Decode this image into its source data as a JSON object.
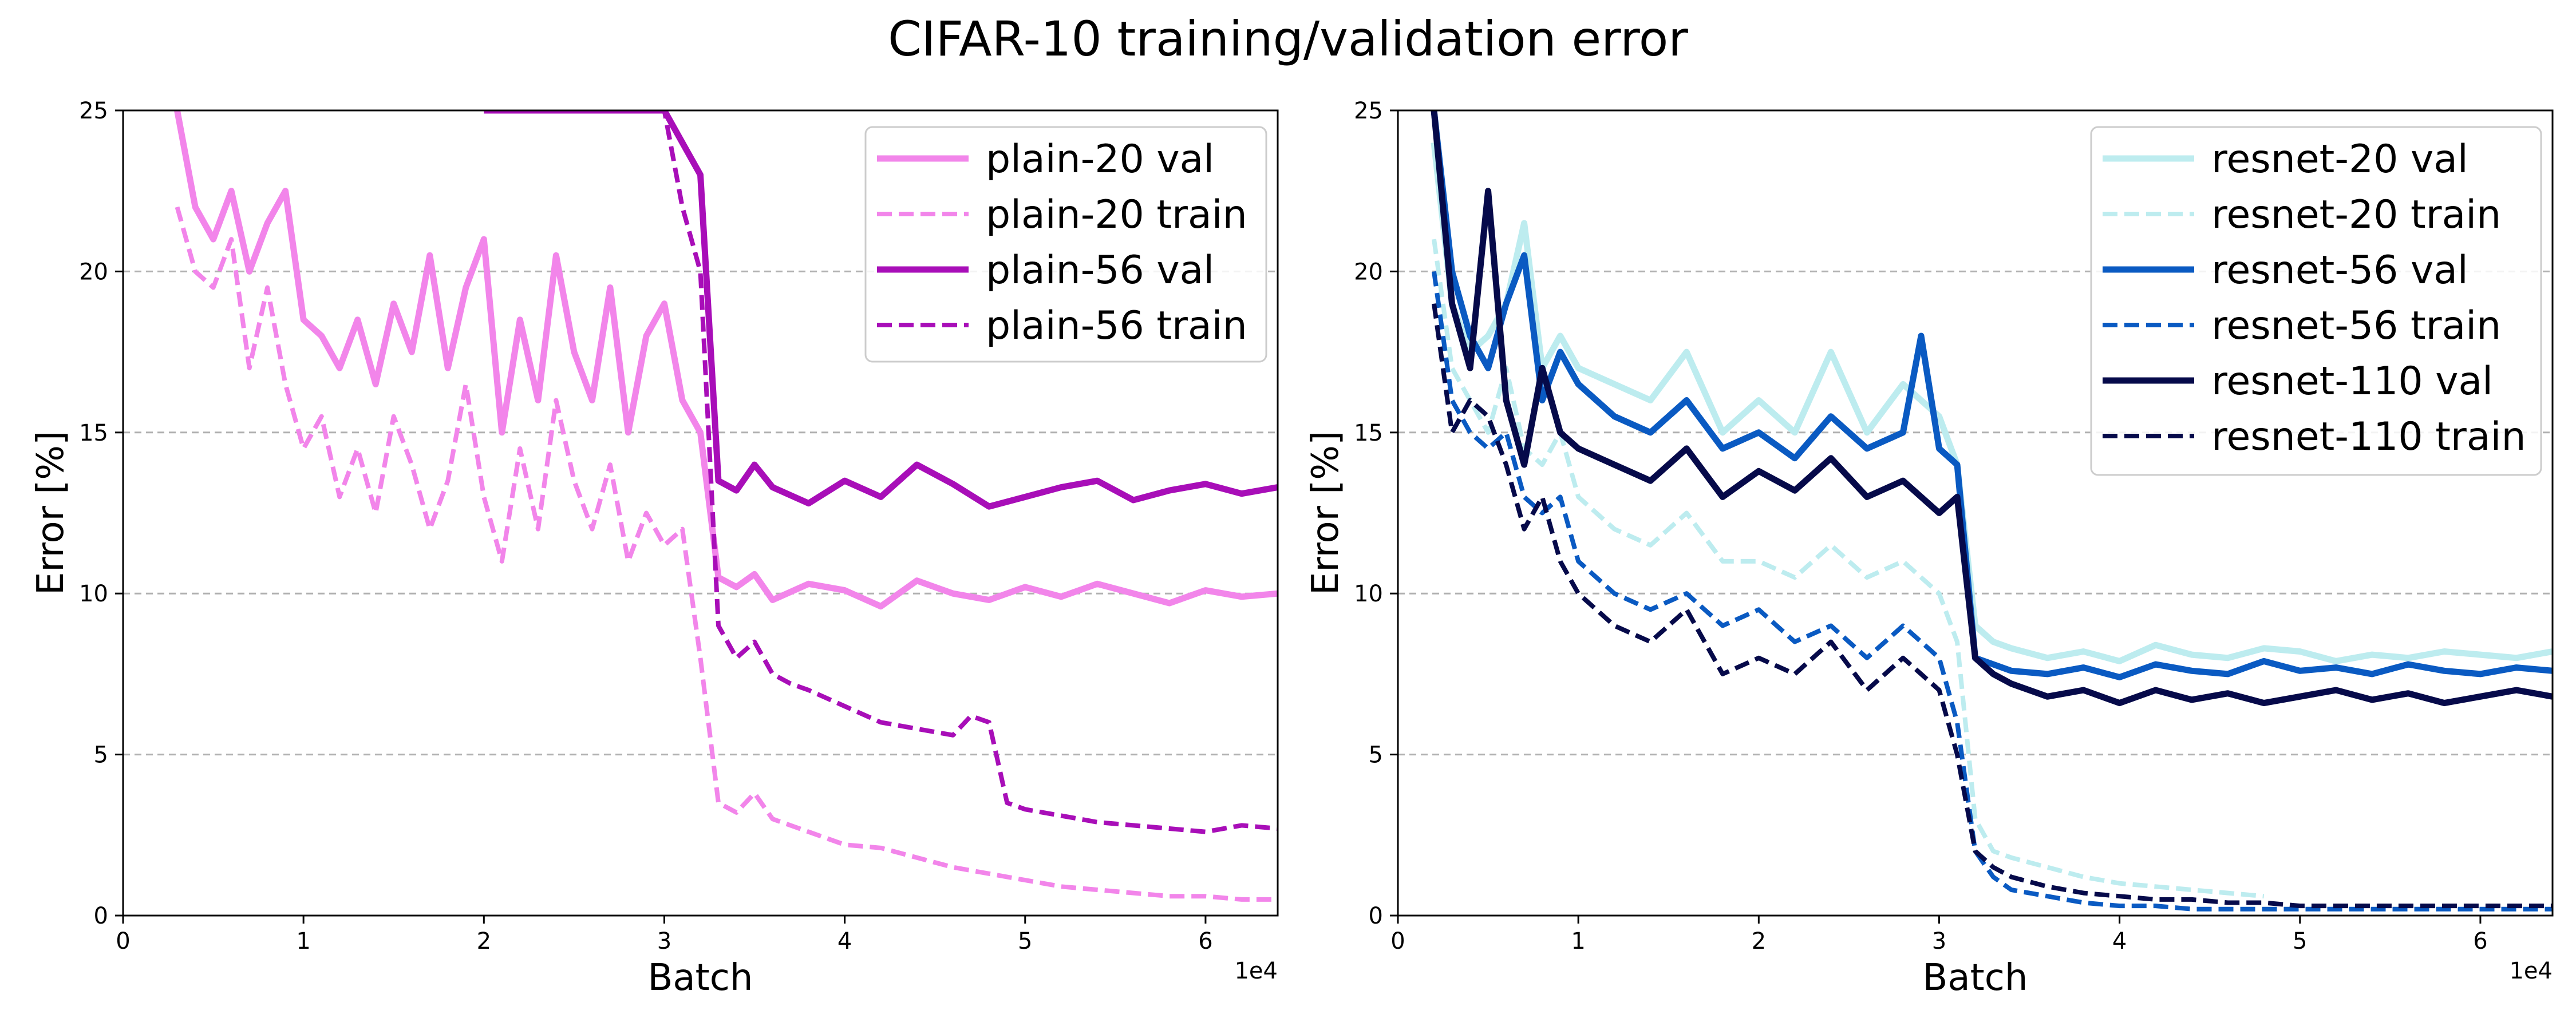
{
  "figure": {
    "title": "CIFAR-10 training/validation error"
  },
  "chart_data": [
    {
      "type": "line",
      "xlabel": "Batch",
      "ylabel": "Error [%]",
      "x_offset_label": "1e4",
      "xlim": [
        0,
        64000
      ],
      "ylim": [
        0,
        25
      ],
      "x_ticks": [
        0,
        10000,
        20000,
        30000,
        40000,
        50000,
        60000
      ],
      "x_tick_labels": [
        "0",
        "1",
        "2",
        "3",
        "4",
        "5",
        "6"
      ],
      "y_ticks": [
        0,
        5,
        10,
        15,
        20,
        25
      ],
      "y_tick_labels": [
        "0",
        "5",
        "10",
        "15",
        "20",
        "25"
      ],
      "grid": "horizontal dashed",
      "legend_position": "upper-right",
      "series": [
        {
          "name": "plain-20 val",
          "color": "#f285ea",
          "dash": "solid",
          "x": [
            3000,
            4000,
            5000,
            6000,
            7000,
            8000,
            9000,
            10000,
            11000,
            12000,
            13000,
            14000,
            15000,
            16000,
            17000,
            18000,
            19000,
            20000,
            21000,
            22000,
            23000,
            24000,
            25000,
            26000,
            27000,
            28000,
            29000,
            30000,
            31000,
            32000,
            33000,
            34000,
            35000,
            36000,
            38000,
            40000,
            42000,
            44000,
            46000,
            48000,
            50000,
            52000,
            54000,
            56000,
            58000,
            60000,
            62000,
            64000
          ],
          "y": [
            25,
            22,
            21,
            22.5,
            20,
            21.5,
            22.5,
            18.5,
            18,
            17,
            18.5,
            16.5,
            19,
            17.5,
            20.5,
            17,
            19.5,
            21,
            15,
            18.5,
            16,
            20.5,
            17.5,
            16,
            19.5,
            15,
            18,
            19,
            16,
            15,
            10.5,
            10.2,
            10.6,
            9.8,
            10.3,
            10.1,
            9.6,
            10.4,
            10,
            9.8,
            10.2,
            9.9,
            10.3,
            10,
            9.7,
            10.1,
            9.9,
            10
          ]
        },
        {
          "name": "plain-20 train",
          "color": "#f285ea",
          "dash": "dashed",
          "x": [
            3000,
            4000,
            5000,
            6000,
            7000,
            8000,
            9000,
            10000,
            11000,
            12000,
            13000,
            14000,
            15000,
            16000,
            17000,
            18000,
            19000,
            20000,
            21000,
            22000,
            23000,
            24000,
            25000,
            26000,
            27000,
            28000,
            29000,
            30000,
            31000,
            32000,
            33000,
            34000,
            35000,
            36000,
            38000,
            40000,
            42000,
            44000,
            46000,
            48000,
            50000,
            52000,
            54000,
            56000,
            58000,
            60000,
            62000,
            64000
          ],
          "y": [
            22,
            20,
            19.5,
            21,
            17,
            19.5,
            16.5,
            14.5,
            15.5,
            13,
            14.5,
            12.5,
            15.5,
            14,
            12,
            13.5,
            16.5,
            13,
            11,
            14.5,
            12,
            16,
            13.5,
            12,
            14,
            11,
            12.5,
            11.5,
            12,
            8,
            3.5,
            3.2,
            3.8,
            3,
            2.6,
            2.2,
            2.1,
            1.8,
            1.5,
            1.3,
            1.1,
            0.9,
            0.8,
            0.7,
            0.6,
            0.6,
            0.5,
            0.5
          ]
        },
        {
          "name": "plain-56 val",
          "color": "#a80eb8",
          "dash": "solid",
          "x": [
            20000,
            22000,
            24000,
            26000,
            28000,
            30000,
            31000,
            32000,
            33000,
            34000,
            35000,
            36000,
            38000,
            40000,
            42000,
            44000,
            46000,
            48000,
            50000,
            52000,
            54000,
            56000,
            58000,
            60000,
            62000,
            64000
          ],
          "y": [
            25,
            25,
            25,
            25,
            25,
            25,
            24,
            23,
            13.5,
            13.2,
            14,
            13.3,
            12.8,
            13.5,
            13,
            14,
            13.4,
            12.7,
            13,
            13.3,
            13.5,
            12.9,
            13.2,
            13.4,
            13.1,
            13.3
          ]
        },
        {
          "name": "plain-56 train",
          "color": "#a80eb8",
          "dash": "dashed",
          "x": [
            26000,
            28000,
            30000,
            31000,
            32000,
            33000,
            34000,
            35000,
            36000,
            37000,
            38000,
            40000,
            42000,
            44000,
            46000,
            47000,
            48000,
            49000,
            50000,
            52000,
            54000,
            56000,
            58000,
            60000,
            62000,
            64000
          ],
          "y": [
            25,
            25,
            25,
            22,
            20,
            9,
            8,
            8.5,
            7.5,
            7.2,
            7,
            6.5,
            6,
            5.8,
            5.6,
            6.2,
            6,
            3.5,
            3.3,
            3.1,
            2.9,
            2.8,
            2.7,
            2.6,
            2.8,
            2.7
          ]
        }
      ]
    },
    {
      "type": "line",
      "xlabel": "Batch",
      "ylabel": "Error [%]",
      "x_offset_label": "1e4",
      "xlim": [
        0,
        64000
      ],
      "ylim": [
        0,
        25
      ],
      "x_ticks": [
        0,
        10000,
        20000,
        30000,
        40000,
        50000,
        60000
      ],
      "x_tick_labels": [
        "0",
        "1",
        "2",
        "3",
        "4",
        "5",
        "6"
      ],
      "y_ticks": [
        0,
        5,
        10,
        15,
        20,
        25
      ],
      "y_tick_labels": [
        "0",
        "5",
        "10",
        "15",
        "20",
        "25"
      ],
      "grid": "horizontal dashed",
      "legend_position": "upper-right",
      "series": [
        {
          "name": "resnet-20 val",
          "color": "#bdecef",
          "dash": "solid",
          "x": [
            2000,
            3000,
            4000,
            5000,
            6000,
            7000,
            8000,
            9000,
            10000,
            12000,
            14000,
            16000,
            18000,
            20000,
            22000,
            24000,
            26000,
            28000,
            30000,
            31000,
            32000,
            33000,
            34000,
            36000,
            38000,
            40000,
            42000,
            44000,
            46000,
            48000,
            50000,
            52000,
            54000,
            56000,
            58000,
            60000,
            62000,
            64000
          ],
          "y": [
            24,
            19,
            17.5,
            18,
            19,
            21.5,
            17,
            18,
            17,
            16.5,
            16,
            17.5,
            15,
            16,
            15,
            17.5,
            15,
            16.5,
            15.5,
            14,
            9,
            8.5,
            8.3,
            8,
            8.2,
            7.9,
            8.4,
            8.1,
            8,
            8.3,
            8.2,
            7.9,
            8.1,
            8,
            8.2,
            8.1,
            8,
            8.2
          ]
        },
        {
          "name": "resnet-20 train",
          "color": "#bdecef",
          "dash": "dashed",
          "x": [
            2000,
            3000,
            4000,
            5000,
            6000,
            7000,
            8000,
            9000,
            10000,
            12000,
            14000,
            16000,
            18000,
            20000,
            22000,
            24000,
            26000,
            28000,
            30000,
            31000,
            32000,
            33000,
            34000,
            36000,
            38000,
            40000,
            42000,
            44000,
            46000,
            48000
          ],
          "y": [
            21,
            17,
            16,
            15,
            17,
            14.5,
            14,
            15,
            13,
            12,
            11.5,
            12.5,
            11,
            11,
            10.5,
            11.5,
            10.5,
            11,
            10,
            8.5,
            3,
            2,
            1.8,
            1.5,
            1.2,
            1,
            0.9,
            0.8,
            0.7,
            0.6
          ]
        },
        {
          "name": "resnet-56 val",
          "color": "#0a5ac2",
          "dash": "solid",
          "x": [
            2000,
            3000,
            4000,
            5000,
            6000,
            7000,
            8000,
            9000,
            10000,
            12000,
            14000,
            16000,
            18000,
            20000,
            22000,
            24000,
            26000,
            28000,
            29000,
            30000,
            31000,
            32000,
            33000,
            34000,
            36000,
            38000,
            40000,
            42000,
            44000,
            46000,
            48000,
            50000,
            52000,
            54000,
            56000,
            58000,
            60000,
            62000,
            64000
          ],
          "y": [
            25,
            20,
            18,
            17,
            19,
            20.5,
            16,
            17.5,
            16.5,
            15.5,
            15,
            16,
            14.5,
            15,
            14.2,
            15.5,
            14.5,
            15,
            18,
            14.5,
            14,
            8,
            7.8,
            7.6,
            7.5,
            7.7,
            7.4,
            7.8,
            7.6,
            7.5,
            7.9,
            7.6,
            7.7,
            7.5,
            7.8,
            7.6,
            7.5,
            7.7,
            7.6
          ]
        },
        {
          "name": "resnet-56 train",
          "color": "#0a5ac2",
          "dash": "dashed",
          "x": [
            2000,
            3000,
            4000,
            5000,
            6000,
            7000,
            8000,
            9000,
            10000,
            12000,
            14000,
            16000,
            18000,
            20000,
            22000,
            24000,
            26000,
            28000,
            30000,
            31000,
            32000,
            33000,
            34000,
            36000,
            38000,
            40000,
            42000,
            44000,
            46000,
            48000,
            50000,
            52000,
            54000,
            56000,
            58000,
            60000,
            62000,
            64000
          ],
          "y": [
            20,
            16,
            15,
            14.5,
            15,
            13,
            12.5,
            13,
            11,
            10,
            9.5,
            10,
            9,
            9.5,
            8.5,
            9,
            8,
            9,
            8,
            6,
            2,
            1.2,
            0.8,
            0.6,
            0.4,
            0.3,
            0.3,
            0.2,
            0.2,
            0.2,
            0.2,
            0.2,
            0.2,
            0.2,
            0.2,
            0.2,
            0.2,
            0.2
          ]
        },
        {
          "name": "resnet-110 val",
          "color": "#060a4a",
          "dash": "solid",
          "x": [
            2000,
            3000,
            4000,
            5000,
            6000,
            7000,
            8000,
            9000,
            10000,
            12000,
            14000,
            16000,
            18000,
            20000,
            22000,
            24000,
            26000,
            28000,
            30000,
            31000,
            32000,
            33000,
            34000,
            36000,
            38000,
            40000,
            42000,
            44000,
            46000,
            48000,
            50000,
            52000,
            54000,
            56000,
            58000,
            60000,
            62000,
            64000
          ],
          "y": [
            25,
            19,
            17,
            22.5,
            16,
            14,
            17,
            15,
            14.5,
            14,
            13.5,
            14.5,
            13,
            13.8,
            13.2,
            14.2,
            13,
            13.5,
            12.5,
            13,
            8,
            7.5,
            7.2,
            6.8,
            7,
            6.6,
            7,
            6.7,
            6.9,
            6.6,
            6.8,
            7,
            6.7,
            6.9,
            6.6,
            6.8,
            7,
            6.8
          ]
        },
        {
          "name": "resnet-110 train",
          "color": "#060a4a",
          "dash": "dashed",
          "x": [
            2000,
            3000,
            4000,
            5000,
            6000,
            7000,
            8000,
            9000,
            10000,
            12000,
            14000,
            16000,
            18000,
            20000,
            22000,
            24000,
            26000,
            28000,
            30000,
            31000,
            32000,
            33000,
            34000,
            36000,
            38000,
            40000,
            42000,
            44000,
            46000,
            48000,
            50000,
            52000,
            54000,
            56000,
            58000,
            60000,
            62000,
            64000
          ],
          "y": [
            19,
            15,
            16,
            15.5,
            14,
            12,
            13,
            11,
            10,
            9,
            8.5,
            9.5,
            7.5,
            8,
            7.5,
            8.5,
            7,
            8,
            7,
            5,
            2,
            1.5,
            1.2,
            0.9,
            0.7,
            0.6,
            0.5,
            0.5,
            0.4,
            0.4,
            0.3,
            0.3,
            0.3,
            0.3,
            0.3,
            0.3,
            0.3,
            0.3
          ]
        }
      ]
    }
  ]
}
